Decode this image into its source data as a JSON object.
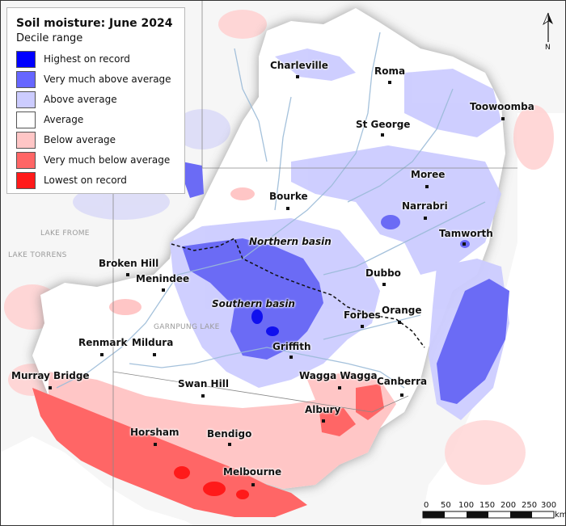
{
  "map": {
    "title": "Soil moisture: June 2024"
  },
  "legend": {
    "subtitle": "Decile range",
    "items": [
      {
        "label": "Highest on record",
        "color": "#0000ff"
      },
      {
        "label": "Very much above average",
        "color": "#6666ff"
      },
      {
        "label": "Above average",
        "color": "#ccccff"
      },
      {
        "label": "Average",
        "color": "#ffffff"
      },
      {
        "label": "Below average",
        "color": "#ffc6c6"
      },
      {
        "label": "Very much below average",
        "color": "#ff6666"
      },
      {
        "label": "Lowest on record",
        "color": "#ff1a1a"
      }
    ]
  },
  "places": {
    "charleville": "Charleville",
    "roma": "Roma",
    "toowoomba": "Toowoomba",
    "st_george": "St George",
    "moree": "Moree",
    "bourke": "Bourke",
    "narrabri": "Narrabri",
    "tamworth": "Tamworth",
    "broken_hill": "Broken Hill",
    "menindee": "Menindee",
    "dubbo": "Dubbo",
    "forbes": "Forbes",
    "orange": "Orange",
    "renmark": "Renmark",
    "mildura": "Mildura",
    "griffith": "Griffith",
    "murray_bridge": "Murray Bridge",
    "swan_hill": "Swan Hill",
    "wagga_wagga": "Wagga Wagga",
    "canberra": "Canberra",
    "albury": "Albury",
    "horsham": "Horsham",
    "bendigo": "Bendigo",
    "melbourne": "Melbourne"
  },
  "basins": {
    "northern": "Northern basin",
    "southern": "Southern basin"
  },
  "lakes": {
    "frome": "LAKE FROME",
    "torrens": "LAKE TORRENS",
    "garnpung": "GARNPUNG LAKE"
  },
  "north_arrow": {
    "letter": "N"
  },
  "scale_bar": {
    "ticks": [
      "0",
      "50",
      "100",
      "150",
      "200",
      "250",
      "300"
    ],
    "unit": "km"
  }
}
